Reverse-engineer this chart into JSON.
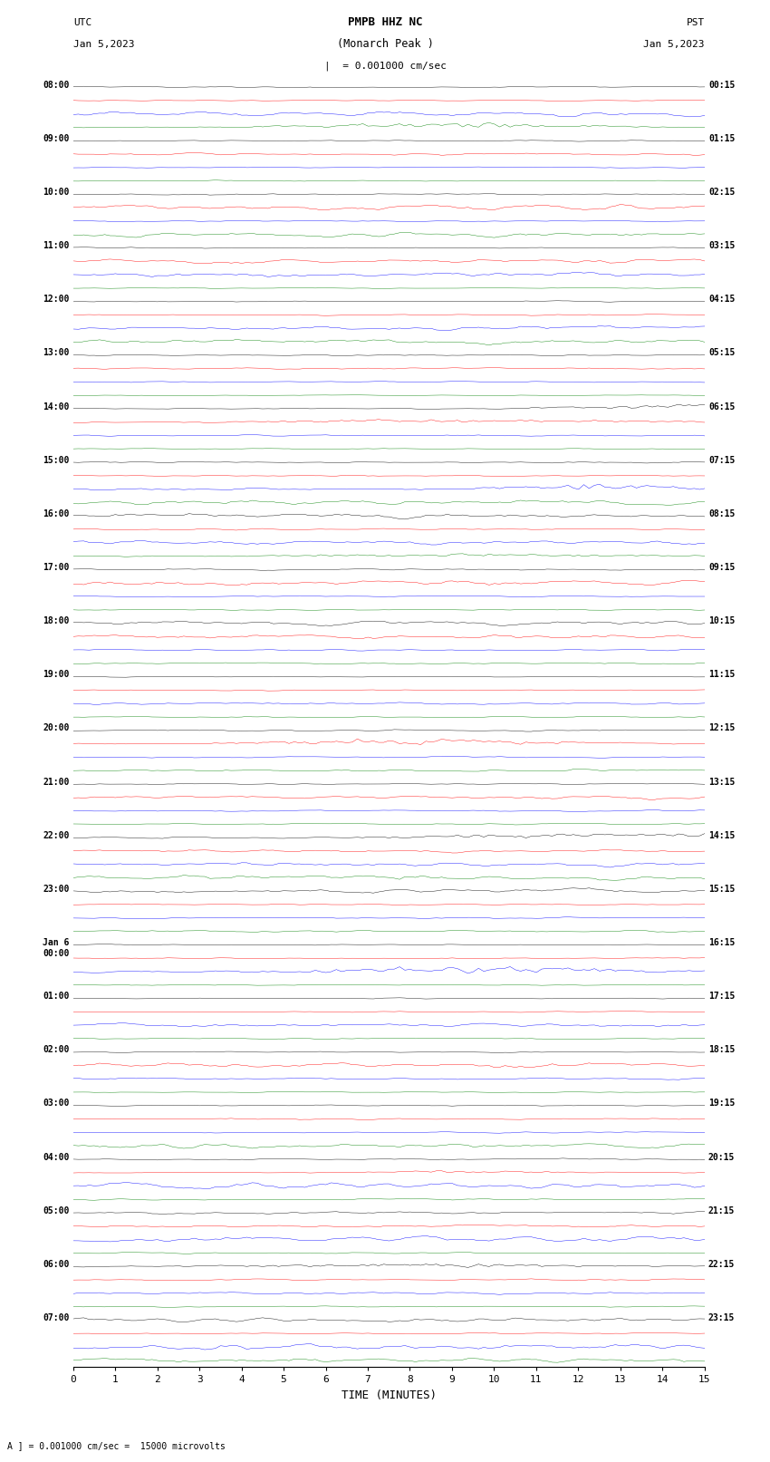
{
  "title_line1": "PMPB HHZ NC",
  "title_line2": "(Monarch Peak )",
  "scale_label": "= 0.001000 cm/sec",
  "bottom_label": "A ] = 0.001000 cm/sec =  15000 microvolts",
  "xlabel": "TIME (MINUTES)",
  "left_times": [
    "08:00",
    "09:00",
    "10:00",
    "11:00",
    "12:00",
    "13:00",
    "14:00",
    "15:00",
    "16:00",
    "17:00",
    "18:00",
    "19:00",
    "20:00",
    "21:00",
    "22:00",
    "23:00",
    "Jan 6\n00:00",
    "01:00",
    "02:00",
    "03:00",
    "04:00",
    "05:00",
    "06:00",
    "07:00"
  ],
  "right_times": [
    "00:15",
    "01:15",
    "02:15",
    "03:15",
    "04:15",
    "05:15",
    "06:15",
    "07:15",
    "08:15",
    "09:15",
    "10:15",
    "11:15",
    "12:15",
    "13:15",
    "14:15",
    "15:15",
    "16:15",
    "17:15",
    "18:15",
    "19:15",
    "20:15",
    "21:15",
    "22:15",
    "23:15"
  ],
  "colors": [
    "black",
    "red",
    "blue",
    "green"
  ],
  "num_rows": 24,
  "traces_per_row": 4,
  "minutes": 15,
  "background_color": "white"
}
